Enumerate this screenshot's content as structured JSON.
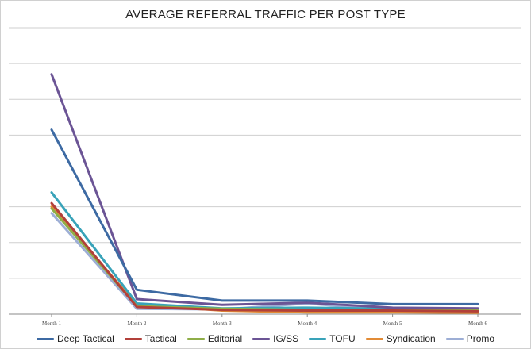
{
  "chart_data": {
    "type": "line",
    "title": "AVERAGE REFERRAL TRAFFIC PER POST TYPE",
    "xlabel": "",
    "ylabel": "",
    "categories": [
      "Month 1",
      "Month 2",
      "Month 3",
      "Month 4",
      "Month 5",
      "Month 6"
    ],
    "ylim": [
      0,
      8
    ],
    "y_tick_labels_shown": false,
    "grid": true,
    "legend_position": "bottom",
    "series": [
      {
        "name": "Deep Tactical",
        "color": "#3d6aa3",
        "values": [
          5.15,
          0.68,
          0.38,
          0.38,
          0.28,
          0.28
        ]
      },
      {
        "name": "Tactical",
        "color": "#b2403a",
        "values": [
          3.1,
          0.2,
          0.12,
          0.1,
          0.1,
          0.08
        ]
      },
      {
        "name": "Editorial",
        "color": "#8fae48",
        "values": [
          2.95,
          0.22,
          0.15,
          0.12,
          0.1,
          0.1
        ]
      },
      {
        "name": "IG/SS",
        "color": "#6b5495",
        "values": [
          6.7,
          0.42,
          0.26,
          0.32,
          0.18,
          0.16
        ]
      },
      {
        "name": "TOFU",
        "color": "#39a3b9",
        "values": [
          3.4,
          0.3,
          0.16,
          0.18,
          0.15,
          0.14
        ]
      },
      {
        "name": "Syndication",
        "color": "#e28b36",
        "values": [
          3.0,
          0.26,
          0.1,
          0.05,
          0.05,
          0.04
        ]
      },
      {
        "name": "Promo",
        "color": "#9daed5",
        "values": [
          2.82,
          0.15,
          0.13,
          0.3,
          0.1,
          0.06
        ]
      }
    ]
  }
}
